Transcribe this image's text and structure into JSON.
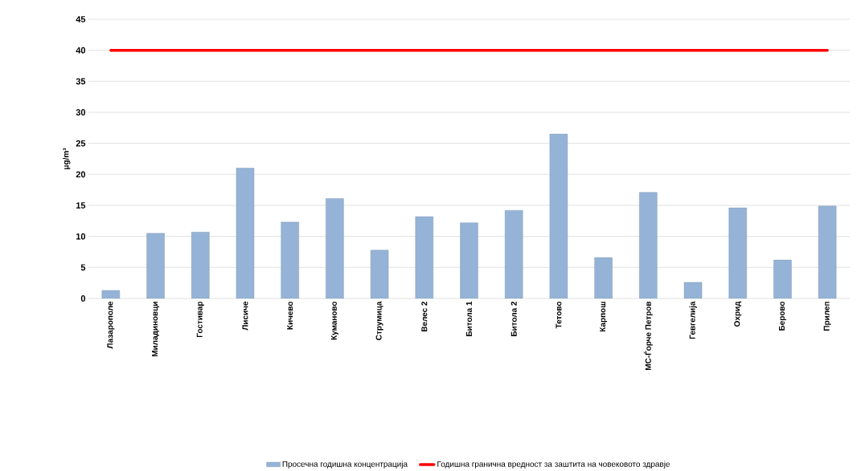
{
  "chart_data": {
    "type": "bar",
    "ylabel": "μg/m³",
    "categories": [
      "Лазарополе",
      "Миладиновци",
      "Гостивар",
      "Лисиче",
      "Кичево",
      "Куманово",
      "Струмица",
      "Велес 2",
      "Битола 1",
      "Битола 2",
      "Тетово",
      "Карпош",
      "МС-Ѓорче Петров",
      "Гевгелија",
      "Охрид",
      "Берово",
      "Прилеп"
    ],
    "series": [
      {
        "name": "Просечна годишна концентрација",
        "color": "#95b3d7",
        "values": [
          1.3,
          10.5,
          10.7,
          21,
          12.3,
          16.1,
          7.8,
          13.2,
          12.2,
          14.2,
          26.5,
          6.6,
          17.1,
          2.6,
          14.6,
          6.2,
          14.9
        ]
      },
      {
        "name": "Годишна гранична вредност за заштита на човековото здравје",
        "type": "line",
        "color": "#ff0000",
        "values": [
          40,
          40,
          40,
          40,
          40,
          40,
          40,
          40,
          40,
          40,
          40,
          40,
          40,
          40,
          40,
          40,
          40
        ]
      }
    ],
    "ylim": [
      0,
      45
    ],
    "yticks": [
      0,
      5,
      10,
      15,
      20,
      25,
      30,
      35,
      40,
      45
    ],
    "grid": "y",
    "legend": "bottom"
  }
}
